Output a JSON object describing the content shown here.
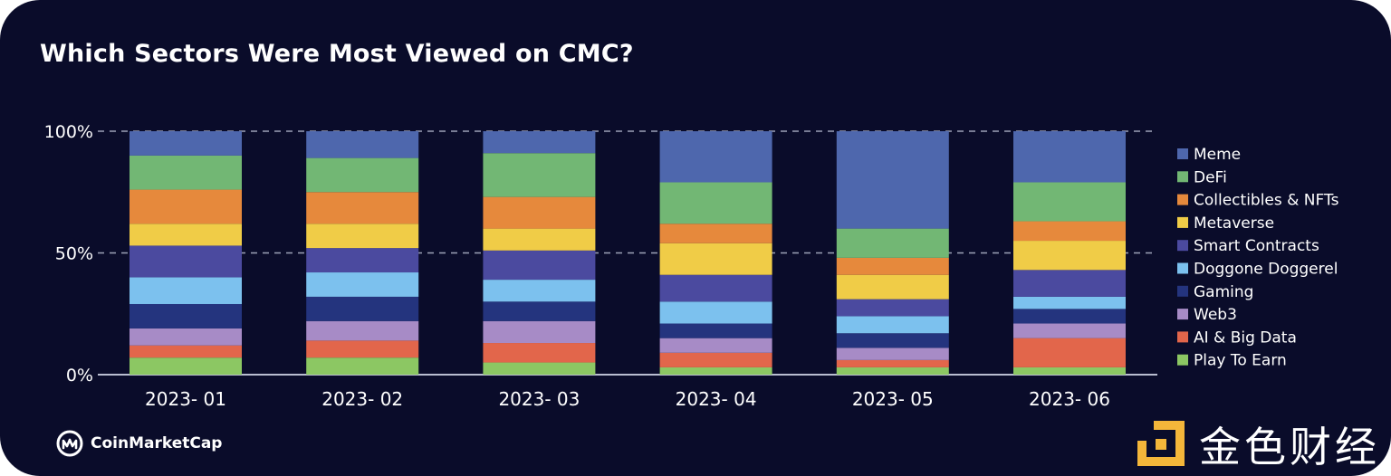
{
  "chart_data": {
    "type": "bar",
    "stacked": true,
    "title": "Which Sectors Were Most Viewed on CMC?",
    "categories": [
      "2023- 01",
      "2023- 02",
      "2023- 03",
      "2023- 04",
      "2023- 05",
      "2023- 06"
    ],
    "y_ticks": [
      "100%",
      "50%",
      "0%"
    ],
    "ylim": [
      0,
      100
    ],
    "legend_position": "right",
    "series": [
      {
        "name": "Play To Earn",
        "color": "#8cc763",
        "values": [
          7,
          7,
          5,
          3,
          3,
          3
        ]
      },
      {
        "name": "AI & Big Data",
        "color": "#e2664b",
        "values": [
          5,
          7,
          8,
          6,
          3,
          12
        ]
      },
      {
        "name": "Web3",
        "color": "#a78bc6",
        "values": [
          7,
          8,
          9,
          6,
          5,
          6
        ]
      },
      {
        "name": "Gaming",
        "color": "#24347e",
        "values": [
          10,
          10,
          8,
          6,
          6,
          6
        ]
      },
      {
        "name": "Doggone Doggerel",
        "color": "#7cc1ee",
        "values": [
          11,
          10,
          9,
          9,
          7,
          5
        ]
      },
      {
        "name": "Smart Contracts",
        "color": "#4b4a9f",
        "values": [
          13,
          10,
          12,
          11,
          7,
          11
        ]
      },
      {
        "name": "Metaverse",
        "color": "#f0cc47",
        "values": [
          9,
          10,
          9,
          13,
          10,
          12
        ]
      },
      {
        "name": "Collectibles & NFTs",
        "color": "#e6893c",
        "values": [
          14,
          13,
          13,
          8,
          7,
          8
        ]
      },
      {
        "name": "DeFi",
        "color": "#72b774",
        "values": [
          14,
          14,
          18,
          17,
          12,
          16
        ]
      },
      {
        "name": "Meme",
        "color": "#4e67ad",
        "values": [
          10,
          11,
          9,
          21,
          40,
          21
        ]
      }
    ]
  },
  "brand": {
    "name": "CoinMarketCap",
    "icon": "coinmarketcap-logo"
  },
  "watermark": {
    "text": "金色财经",
    "icon": "jinse-logo",
    "color": "#f4b63a"
  }
}
